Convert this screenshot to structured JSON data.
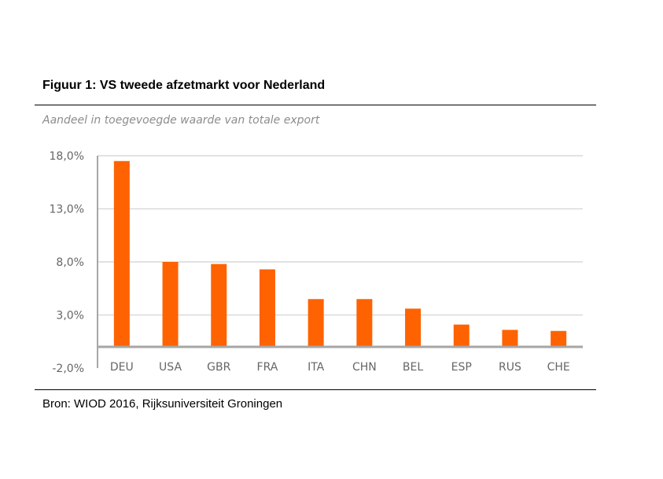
{
  "figure": {
    "title": "Figuur 1: VS tweede afzetmarkt voor Nederland",
    "subtitle": "Aandeel in toegevoegde waarde van totale export",
    "source": "Bron: WIOD 2016, Rijksuniversiteit Groningen"
  },
  "chart_data": {
    "type": "bar",
    "categories": [
      "DEU",
      "USA",
      "GBR",
      "FRA",
      "ITA",
      "CHN",
      "BEL",
      "ESP",
      "RUS",
      "CHE"
    ],
    "values": [
      17.5,
      8.0,
      7.8,
      7.3,
      4.5,
      4.5,
      3.6,
      2.1,
      1.6,
      1.5
    ],
    "ylim": [
      -2.0,
      18.0
    ],
    "yticks": [
      -2.0,
      3.0,
      8.0,
      13.0,
      18.0
    ],
    "ytick_labels": [
      "-2,0%",
      "3,0%",
      "8,0%",
      "13,0%",
      "18,0%"
    ],
    "grid": true,
    "bar_color": "#ff6200",
    "grid_color": "#d9d9d9",
    "axis_color": "#a6a6a6"
  }
}
